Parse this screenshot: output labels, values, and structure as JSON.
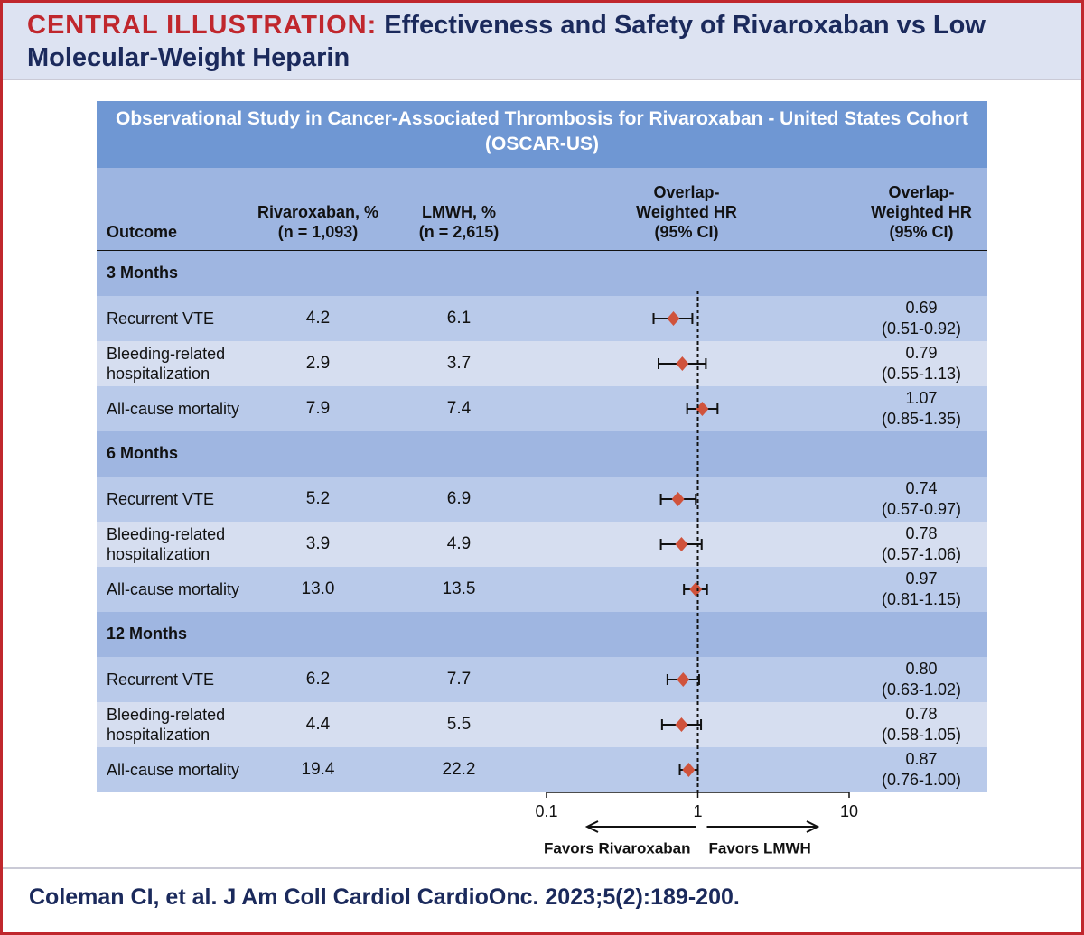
{
  "header": {
    "label": "CENTRAL ILLUSTRATION:",
    "title": "Effectiveness and Safety of Rivaroxaban vs Low Molecular-Weight Heparin"
  },
  "chart_data": {
    "type": "forest",
    "title": "Observational Study in Cancer-Associated Thrombosis for Rivaroxaban - United States Cohort (OSCAR-US)",
    "columns": [
      [
        "Outcome"
      ],
      [
        "Rivaroxaban, %",
        "(n = 1,093)"
      ],
      [
        "LMWH, %",
        "(n = 2,615)"
      ],
      [
        "Overlap-",
        "Weighted HR",
        "(95% CI)"
      ],
      [
        "Overlap-",
        "Weighted HR",
        "(95% CI)"
      ]
    ],
    "groups": [
      {
        "name": "3 Months",
        "rows": [
          {
            "outcome": "Recurrent VTE",
            "rivaroxaban": "4.2",
            "lmwh": "6.1",
            "hr": 0.69,
            "lower": 0.51,
            "upper": 0.92,
            "hr_label": "0.69",
            "ci_label": "(0.51-0.92)"
          },
          {
            "outcome": "Bleeding-related hospitalization",
            "rivaroxaban": "2.9",
            "lmwh": "3.7",
            "hr": 0.79,
            "lower": 0.55,
            "upper": 1.13,
            "hr_label": "0.79",
            "ci_label": "(0.55-1.13)"
          },
          {
            "outcome": "All-cause mortality",
            "rivaroxaban": "7.9",
            "lmwh": "7.4",
            "hr": 1.07,
            "lower": 0.85,
            "upper": 1.35,
            "hr_label": "1.07",
            "ci_label": "(0.85-1.35)"
          }
        ]
      },
      {
        "name": "6 Months",
        "rows": [
          {
            "outcome": "Recurrent VTE",
            "rivaroxaban": "5.2",
            "lmwh": "6.9",
            "hr": 0.74,
            "lower": 0.57,
            "upper": 0.97,
            "hr_label": "0.74",
            "ci_label": "(0.57-0.97)"
          },
          {
            "outcome": "Bleeding-related hospitalization",
            "rivaroxaban": "3.9",
            "lmwh": "4.9",
            "hr": 0.78,
            "lower": 0.57,
            "upper": 1.06,
            "hr_label": "0.78",
            "ci_label": "(0.57-1.06)"
          },
          {
            "outcome": "All-cause mortality",
            "rivaroxaban": "13.0",
            "lmwh": "13.5",
            "hr": 0.97,
            "lower": 0.81,
            "upper": 1.15,
            "hr_label": "0.97",
            "ci_label": "(0.81-1.15)"
          }
        ]
      },
      {
        "name": "12 Months",
        "rows": [
          {
            "outcome": "Recurrent VTE",
            "rivaroxaban": "6.2",
            "lmwh": "7.7",
            "hr": 0.8,
            "lower": 0.63,
            "upper": 1.02,
            "hr_label": "0.80",
            "ci_label": "(0.63-1.02)"
          },
          {
            "outcome": "Bleeding-related hospitalization",
            "rivaroxaban": "4.4",
            "lmwh": "5.5",
            "hr": 0.78,
            "lower": 0.58,
            "upper": 1.05,
            "hr_label": "0.78",
            "ci_label": "(0.58-1.05)"
          },
          {
            "outcome": "All-cause mortality",
            "rivaroxaban": "19.4",
            "lmwh": "22.2",
            "hr": 0.87,
            "lower": 0.76,
            "upper": 1.0,
            "hr_label": "0.87",
            "ci_label": "(0.76-1.00)"
          }
        ]
      }
    ],
    "xscale": "log",
    "xlim": [
      0.1,
      10
    ],
    "xticks": [
      0.1,
      1,
      10
    ],
    "reference_line": 1,
    "annotations": [
      "Favors Rivaroxaban",
      "Favors LMWH"
    ],
    "color": "#d0533c"
  },
  "citation": "Coleman CI, et al. J Am Coll Cardiol CardioOnc. 2023;5(2):189-200."
}
